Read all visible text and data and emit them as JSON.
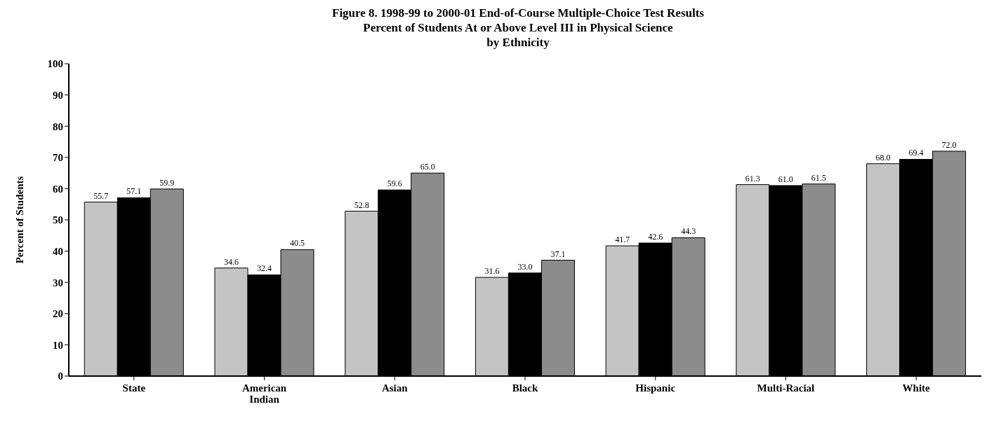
{
  "chart_data": {
    "type": "bar",
    "title": "Figure 8.  1998-99 to 2000-01 End-of-Course Multiple-Choice Test Results",
    "subtitle": "Percent of Students At or Above Level III in Physical Science\nby Ethnicity",
    "ylabel": "Percent of Students",
    "categories": [
      "State",
      "American Indian",
      "Asian",
      "Black",
      "Hispanic",
      "Multi-Racial",
      "White"
    ],
    "series": [
      {
        "color": "#c4c4c4",
        "values": [
          55.7,
          34.6,
          52.8,
          31.6,
          41.7,
          61.3,
          68.0
        ],
        "value_labels": [
          "55.7",
          "34.6",
          "52.8",
          "31.6",
          "41.7",
          "61.3",
          "68.0"
        ]
      },
      {
        "color": "#000000",
        "values": [
          57.1,
          32.4,
          59.6,
          33.0,
          42.6,
          61.0,
          69.4
        ],
        "value_labels": [
          "57.1",
          "32.4",
          "59.6",
          "33.0",
          "42.6",
          "61.0",
          "69.4"
        ]
      },
      {
        "color": "#8c8c8c",
        "values": [
          59.9,
          40.5,
          65.0,
          37.1,
          44.3,
          61.5,
          72.0
        ],
        "value_labels": [
          "59.9",
          "40.5",
          "65.0",
          "37.1",
          "44.3",
          "61.5",
          "72.0"
        ]
      }
    ],
    "ylim": [
      0,
      100
    ],
    "yticks": [
      0,
      10,
      20,
      30,
      40,
      50,
      60,
      70,
      80,
      90,
      100
    ],
    "grid": false,
    "legend": false
  }
}
